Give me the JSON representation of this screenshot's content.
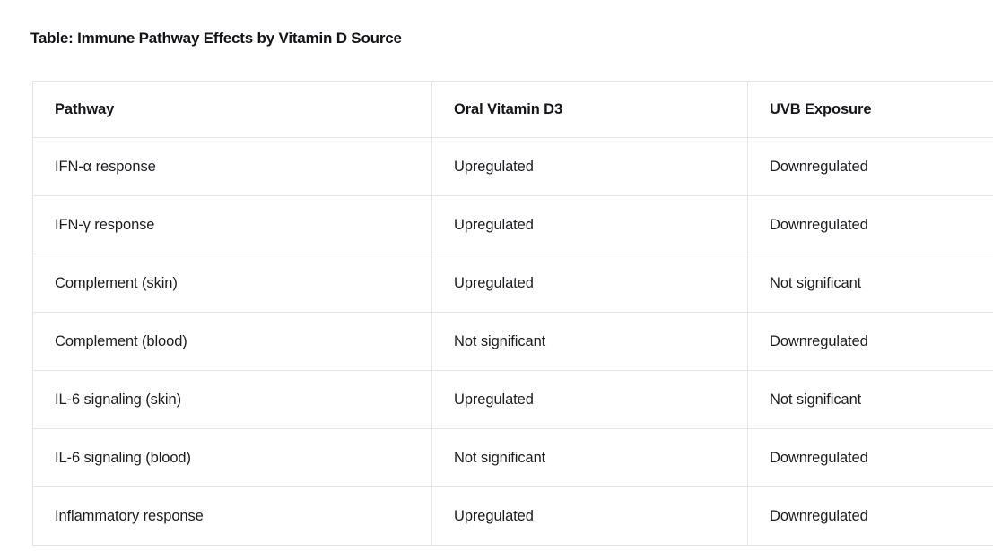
{
  "styles": {
    "background": "#ffffff",
    "border_color": "#e2e4e7",
    "text_color": "#1b1d21",
    "title_color": "#121417"
  },
  "chart_data": {
    "type": "table",
    "title": "Table: Immune Pathway Effects by Vitamin D Source",
    "columns": [
      "Pathway",
      "Oral Vitamin D3",
      "UVB Exposure"
    ],
    "rows": [
      [
        "IFN-α response",
        "Upregulated",
        "Downregulated"
      ],
      [
        "IFN-γ response",
        "Upregulated",
        "Downregulated"
      ],
      [
        "Complement (skin)",
        "Upregulated",
        "Not significant"
      ],
      [
        "Complement (blood)",
        "Not significant",
        "Downregulated"
      ],
      [
        "IL-6 signaling (skin)",
        "Upregulated",
        "Not significant"
      ],
      [
        "IL-6 signaling (blood)",
        "Not significant",
        "Downregulated"
      ],
      [
        "Inflammatory response",
        "Upregulated",
        "Downregulated"
      ]
    ],
    "layout": {
      "grid": "row-and-column-borders",
      "header_position": "top",
      "right_edge": "clipped-by-viewport"
    }
  }
}
